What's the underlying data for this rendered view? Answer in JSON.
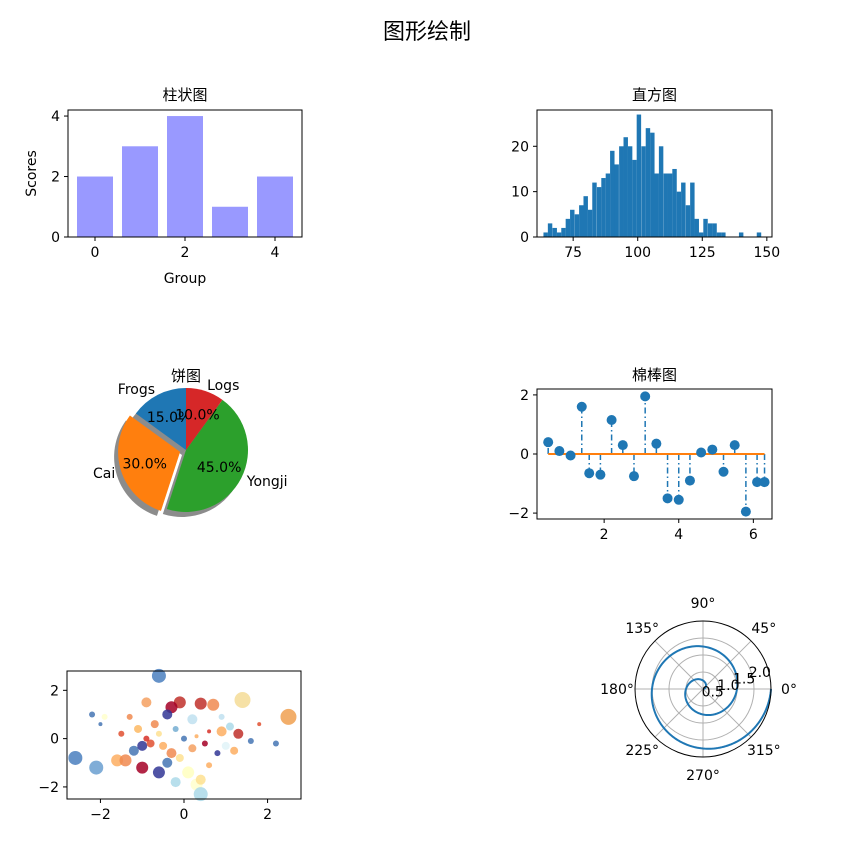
{
  "figure_title": "图形绘制",
  "chart_data": [
    {
      "type": "bar",
      "title": "柱状图",
      "xlabel": "Group",
      "ylabel": "Scores",
      "categories": [
        0,
        1,
        2,
        3,
        4
      ],
      "values": [
        2,
        3,
        4,
        1,
        2
      ],
      "xlim": [
        -0.6,
        4.6
      ],
      "ylim": [
        0,
        4.2
      ],
      "xticks": [
        0,
        2,
        4
      ],
      "yticks": [
        0,
        2,
        4
      ],
      "color": "#9999ff"
    },
    {
      "type": "bar",
      "subtype": "histogram",
      "title": "直方图",
      "xlim": [
        61,
        152
      ],
      "ylim": [
        0,
        28
      ],
      "xticks": [
        75,
        100,
        125,
        150
      ],
      "yticks": [
        0,
        10,
        20
      ],
      "bin_width": 1.72,
      "bins": [
        [
          63.5,
          1
        ],
        [
          65.2,
          3
        ],
        [
          67.0,
          2
        ],
        [
          68.7,
          1
        ],
        [
          70.4,
          2
        ],
        [
          72.1,
          4
        ],
        [
          73.8,
          6
        ],
        [
          75.6,
          5
        ],
        [
          77.3,
          7
        ],
        [
          79.0,
          9
        ],
        [
          80.7,
          6
        ],
        [
          82.4,
          12
        ],
        [
          84.2,
          11
        ],
        [
          85.9,
          13
        ],
        [
          87.6,
          14
        ],
        [
          89.3,
          19
        ],
        [
          91.0,
          16
        ],
        [
          92.8,
          20
        ],
        [
          94.5,
          22
        ],
        [
          96.2,
          20
        ],
        [
          97.9,
          17
        ],
        [
          99.6,
          27
        ],
        [
          101.4,
          20
        ],
        [
          103.1,
          24
        ],
        [
          104.8,
          23
        ],
        [
          106.5,
          14
        ],
        [
          108.2,
          20
        ],
        [
          110.0,
          14
        ],
        [
          111.7,
          14
        ],
        [
          113.4,
          15
        ],
        [
          115.1,
          10
        ],
        [
          116.8,
          12
        ],
        [
          118.6,
          7
        ],
        [
          120.3,
          12
        ],
        [
          122.0,
          4
        ],
        [
          123.7,
          1
        ],
        [
          125.4,
          4
        ],
        [
          127.2,
          3
        ],
        [
          128.9,
          3
        ],
        [
          130.6,
          1
        ],
        [
          132.3,
          1
        ],
        [
          139.2,
          1
        ],
        [
          146.1,
          1
        ]
      ],
      "color": "#1f77b4"
    },
    {
      "type": "pie",
      "title": "饼图",
      "labels": [
        "Frogs",
        "Cai",
        "Yongji",
        "Logs"
      ],
      "values": [
        15,
        30,
        45,
        10
      ],
      "percent_labels": [
        "15.0%",
        "30.0%",
        "45.0%",
        "10.0%"
      ],
      "colors": [
        "#1f77b4",
        "#ff7f0e",
        "#2ca02c",
        "#d62728"
      ],
      "explode": [
        0,
        0.1,
        0,
        0
      ],
      "start_angle": 90,
      "shadow": true
    },
    {
      "type": "line",
      "subtype": "stem",
      "title": "棉棒图",
      "xlim": [
        0.2,
        6.5
      ],
      "ylim": [
        -2.2,
        2.2
      ],
      "xticks": [
        2,
        4,
        6
      ],
      "yticks": [
        -2,
        0,
        2
      ],
      "x": [
        0.5,
        0.8,
        1.1,
        1.4,
        1.6,
        1.9,
        2.2,
        2.5,
        2.8,
        3.1,
        3.4,
        3.7,
        4.0,
        4.3,
        4.6,
        4.9,
        5.2,
        5.5,
        5.8,
        6.1,
        6.3
      ],
      "y": [
        0.4,
        0.1,
        -0.05,
        1.6,
        -0.65,
        -0.7,
        1.15,
        0.3,
        -0.75,
        1.95,
        0.35,
        -1.5,
        -1.55,
        -0.9,
        0.05,
        0.15,
        -0.6,
        0.3,
        -1.95,
        -0.95,
        -0.95
      ],
      "marker_color": "#1f77b4",
      "baseline_color": "#ff7f0e"
    },
    {
      "type": "scatter",
      "xlim": [
        -2.8,
        2.8
      ],
      "ylim": [
        -2.5,
        2.8
      ],
      "xticks": [
        -2,
        0,
        2
      ],
      "yticks": [
        -2,
        0,
        2
      ],
      "points": [
        [
          -0.6,
          2.6,
          7,
          "#4a7fbe"
        ],
        [
          1.4,
          1.6,
          8,
          "#f5dc96"
        ],
        [
          2.5,
          0.9,
          8,
          "#f0a050"
        ],
        [
          -0.1,
          1.5,
          6,
          "#c0302a"
        ],
        [
          0.4,
          1.45,
          6,
          "#c0302a"
        ],
        [
          -0.3,
          1.3,
          6,
          "#a50026"
        ],
        [
          0.7,
          1.4,
          6,
          "#f08a50"
        ],
        [
          -0.9,
          1.5,
          5,
          "#f5a060"
        ],
        [
          -1.9,
          0.9,
          3,
          "#ffffcc"
        ],
        [
          -2.2,
          1.0,
          3,
          "#4575b4"
        ],
        [
          -2.0,
          0.6,
          2,
          "#4575b4"
        ],
        [
          -0.4,
          1.0,
          5,
          "#313695"
        ],
        [
          0.2,
          0.8,
          5,
          "#c0e0f0"
        ],
        [
          -0.7,
          0.6,
          4,
          "#f08a50"
        ],
        [
          -1.1,
          0.4,
          4,
          "#fdb863"
        ],
        [
          -1.5,
          0.2,
          3,
          "#e05030"
        ],
        [
          0.9,
          0.3,
          5,
          "#fdae61"
        ],
        [
          1.1,
          0.5,
          4,
          "#abd9e9"
        ],
        [
          1.3,
          0.2,
          5,
          "#c0302a"
        ],
        [
          1.6,
          -0.1,
          3,
          "#4575b4"
        ],
        [
          2.2,
          -0.2,
          3,
          "#4575b4"
        ],
        [
          -2.6,
          -0.8,
          7,
          "#4a7fbe"
        ],
        [
          -2.1,
          -1.2,
          7,
          "#6a9fd0"
        ],
        [
          -1.6,
          -0.9,
          6,
          "#fdae61"
        ],
        [
          -1.4,
          -0.9,
          6,
          "#f08a50"
        ],
        [
          -1.2,
          -0.5,
          5,
          "#4575b4"
        ],
        [
          -1.0,
          -0.3,
          5,
          "#313695"
        ],
        [
          -0.8,
          -0.2,
          4,
          "#e05030"
        ],
        [
          -0.5,
          -0.3,
          4,
          "#fdae61"
        ],
        [
          -0.3,
          -0.6,
          5,
          "#f08a50"
        ],
        [
          -0.1,
          -0.8,
          4,
          "#fee090"
        ],
        [
          0.2,
          -0.4,
          4,
          "#f5a060"
        ],
        [
          0.5,
          -0.2,
          3,
          "#a50026"
        ],
        [
          0.8,
          -0.6,
          3,
          "#313695"
        ],
        [
          1.0,
          -0.3,
          4,
          "#e0f3f8"
        ],
        [
          1.2,
          -0.5,
          4,
          "#fdae61"
        ],
        [
          -1.0,
          -1.2,
          6,
          "#a50026"
        ],
        [
          -0.6,
          -1.4,
          6,
          "#313695"
        ],
        [
          -0.4,
          -1.0,
          5,
          "#4575b4"
        ],
        [
          0.1,
          -1.4,
          6,
          "#ffffbf"
        ],
        [
          -0.2,
          -1.8,
          5,
          "#abd9e9"
        ],
        [
          0.3,
          -1.9,
          6,
          "#ffffcc"
        ],
        [
          0.4,
          -1.7,
          5,
          "#fee090"
        ],
        [
          0.4,
          -2.3,
          7,
          "#abd9e9"
        ],
        [
          0.6,
          -1.1,
          3,
          "#fdae61"
        ],
        [
          -0.9,
          0.0,
          3,
          "#d73027"
        ],
        [
          -0.6,
          0.2,
          3,
          "#fee090"
        ],
        [
          0.0,
          0.0,
          3,
          "#4575b4"
        ],
        [
          0.3,
          0.1,
          2,
          "#fdae61"
        ],
        [
          0.6,
          0.3,
          2,
          "#d73027"
        ],
        [
          -1.3,
          0.9,
          3,
          "#f08a50"
        ],
        [
          -0.2,
          0.4,
          3,
          "#74add1"
        ],
        [
          1.8,
          0.6,
          2,
          "#e05030"
        ],
        [
          0.9,
          0.9,
          3,
          "#c0e0f0"
        ]
      ]
    },
    {
      "type": "line",
      "subtype": "polar",
      "theta_labels": [
        "0°",
        "45°",
        "90°",
        "135°",
        "180°",
        "225°",
        "270°",
        "315°"
      ],
      "r_ticks": [
        "0.5",
        "1.0",
        "1.5",
        "2.0"
      ],
      "r_max": 2.0,
      "r_of_theta": "r = theta / (2*pi), theta from 0 to 4*pi",
      "color": "#1f77b4"
    }
  ]
}
